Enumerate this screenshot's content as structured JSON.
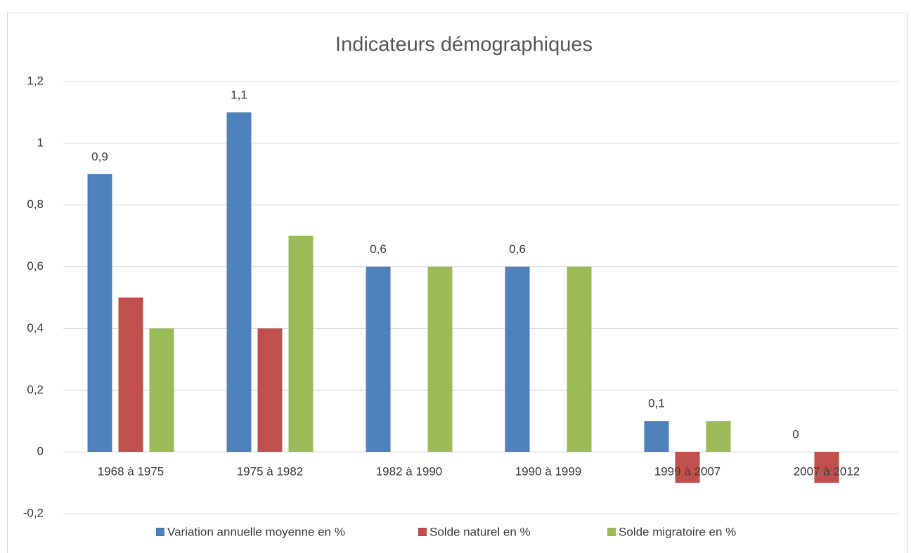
{
  "chart_data": {
    "type": "bar",
    "title": "Indicateurs démographiques",
    "categories": [
      "1968 à 1975",
      "1975 à 1982",
      "1982 à 1990",
      "1990 à 1999",
      "1999 à 2007",
      "2007 à 2012"
    ],
    "series": [
      {
        "name": "Variation annuelle moyenne en %",
        "color": "#4f81bd",
        "values": [
          0.9,
          1.1,
          0.6,
          0.6,
          0.1,
          0
        ],
        "value_labels": [
          "0,9",
          "1,1",
          "0,6",
          "0,6",
          "0,1",
          "0"
        ]
      },
      {
        "name": "Solde naturel en %",
        "color": "#c0504d",
        "values": [
          0.5,
          0.4,
          0,
          0,
          -0.1,
          -0.1
        ]
      },
      {
        "name": "Solde migratoire en %",
        "color": "#9bbb59",
        "values": [
          0.4,
          0.7,
          0.6,
          0.6,
          0.1,
          0
        ]
      }
    ],
    "ylim": [
      -0.2,
      1.2
    ],
    "yticks": [
      {
        "value": -0.2,
        "label": "-0,2"
      },
      0,
      {
        "value": 0.2,
        "label": "0,2"
      },
      {
        "value": 0.4,
        "label": "0,4"
      },
      {
        "value": 0.6,
        "label": "0,6"
      },
      {
        "value": 0.8,
        "label": "0,8"
      },
      1,
      {
        "value": 1.2,
        "label": "1,2"
      }
    ],
    "grid": true,
    "legend": "bottom"
  }
}
